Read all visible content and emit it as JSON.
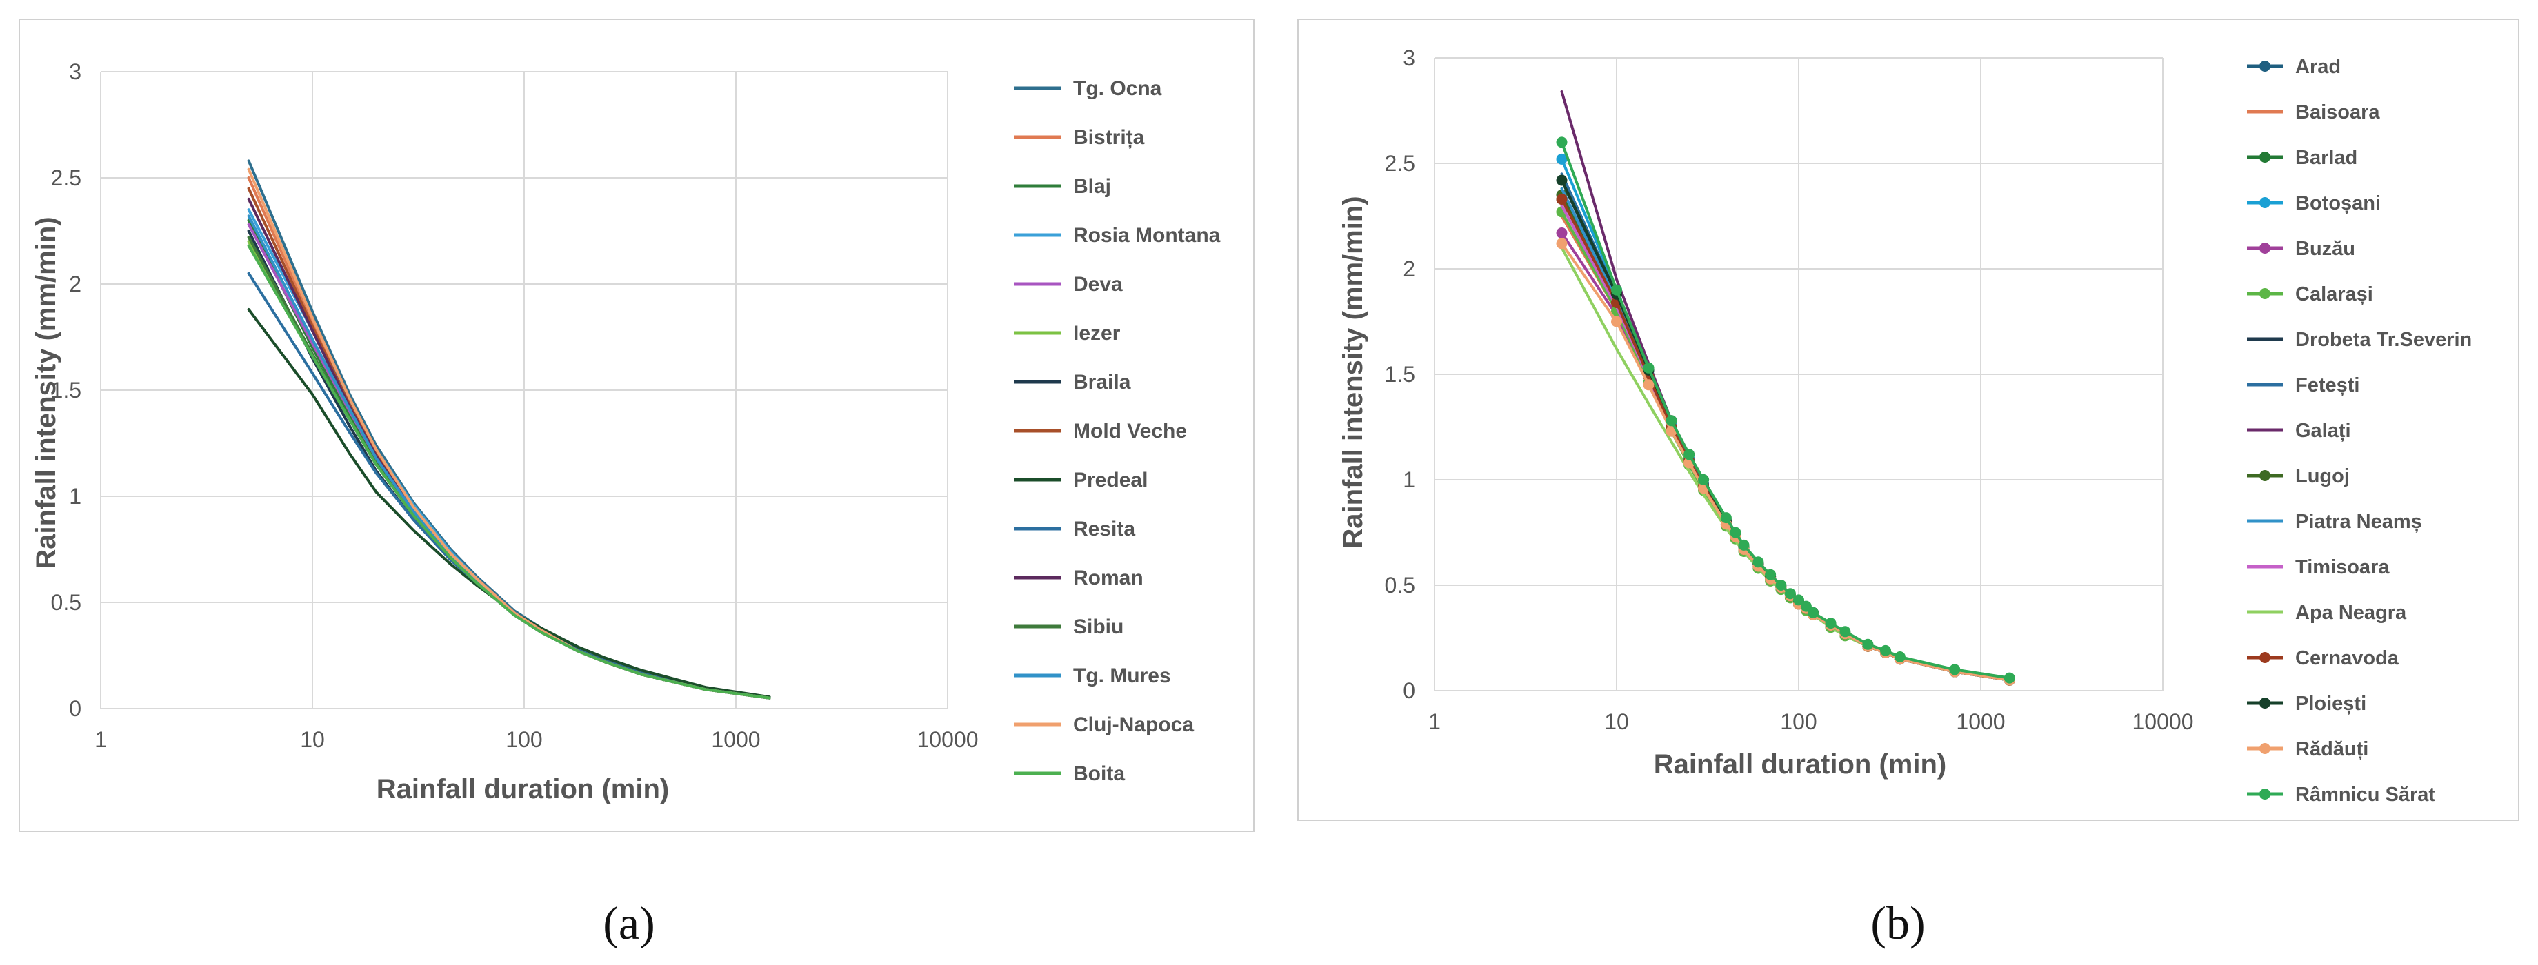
{
  "panel_labels": {
    "a": "(a)",
    "b": "(b)"
  },
  "chart_data": [
    {
      "id": "a",
      "type": "line",
      "xscale": "log",
      "xlabel": "Rainfall duration (min)",
      "ylabel": "Rainfall intensity (mm/min)",
      "xlim": [
        1,
        10000
      ],
      "ylim": [
        0,
        3
      ],
      "grid": true,
      "legend": "right",
      "x_ticks": [
        "1",
        "10",
        "100",
        "1000",
        "10000"
      ],
      "y_ticks": [
        "0",
        "0.5",
        "1",
        "1.5",
        "2",
        "2.5",
        "3"
      ],
      "x": [
        5,
        10,
        15,
        20,
        30,
        45,
        60,
        90,
        120,
        180,
        240,
        360,
        720,
        1440
      ],
      "series": [
        {
          "name": "Tg. Ocna",
          "color": "#2e6f8e",
          "values": [
            2.58,
            1.87,
            1.48,
            1.24,
            0.97,
            0.75,
            0.62,
            0.46,
            0.38,
            0.28,
            0.23,
            0.17,
            0.095,
            0.053
          ]
        },
        {
          "name": "Bistrița",
          "color": "#e07a52",
          "values": [
            2.5,
            1.82,
            1.45,
            1.21,
            0.95,
            0.73,
            0.61,
            0.45,
            0.37,
            0.27,
            0.22,
            0.16,
            0.09,
            0.05
          ]
        },
        {
          "name": "Blaj",
          "color": "#2f7d3a",
          "values": [
            2.3,
            1.7,
            1.38,
            1.16,
            0.92,
            0.72,
            0.6,
            0.45,
            0.37,
            0.27,
            0.22,
            0.16,
            0.09,
            0.05
          ]
        },
        {
          "name": "Rosia Montana",
          "color": "#3aa0d8",
          "values": [
            2.35,
            1.78,
            1.45,
            1.22,
            0.96,
            0.74,
            0.61,
            0.45,
            0.37,
            0.27,
            0.22,
            0.16,
            0.09,
            0.05
          ]
        },
        {
          "name": "Deva",
          "color": "#a855c0",
          "values": [
            2.28,
            1.72,
            1.4,
            1.18,
            0.93,
            0.72,
            0.6,
            0.45,
            0.37,
            0.27,
            0.22,
            0.16,
            0.09,
            0.05
          ]
        },
        {
          "name": "Iezer",
          "color": "#7cc243",
          "values": [
            2.2,
            1.66,
            1.36,
            1.15,
            0.91,
            0.71,
            0.59,
            0.44,
            0.36,
            0.27,
            0.22,
            0.16,
            0.09,
            0.05
          ]
        },
        {
          "name": "Braila",
          "color": "#1f3a4d",
          "values": [
            2.25,
            1.65,
            1.33,
            1.12,
            0.89,
            0.7,
            0.59,
            0.44,
            0.36,
            0.27,
            0.22,
            0.16,
            0.09,
            0.05
          ]
        },
        {
          "name": "Mold Veche",
          "color": "#a8502a",
          "values": [
            2.45,
            1.8,
            1.43,
            1.2,
            0.94,
            0.73,
            0.6,
            0.45,
            0.37,
            0.27,
            0.22,
            0.16,
            0.09,
            0.05
          ]
        },
        {
          "name": "Predeal",
          "color": "#1b4d2a",
          "values": [
            1.88,
            1.48,
            1.2,
            1.02,
            0.84,
            0.68,
            0.58,
            0.45,
            0.38,
            0.29,
            0.24,
            0.18,
            0.1,
            0.055
          ]
        },
        {
          "name": "Resita",
          "color": "#2c6fa0",
          "values": [
            2.05,
            1.58,
            1.3,
            1.11,
            0.89,
            0.7,
            0.59,
            0.44,
            0.36,
            0.27,
            0.22,
            0.16,
            0.09,
            0.05
          ]
        },
        {
          "name": "Roman",
          "color": "#5c2a5e",
          "values": [
            2.4,
            1.78,
            1.42,
            1.19,
            0.93,
            0.72,
            0.6,
            0.45,
            0.37,
            0.27,
            0.22,
            0.16,
            0.09,
            0.05
          ]
        },
        {
          "name": "Sibiu",
          "color": "#3e7a3b",
          "values": [
            2.22,
            1.67,
            1.36,
            1.15,
            0.91,
            0.71,
            0.59,
            0.44,
            0.36,
            0.27,
            0.22,
            0.16,
            0.09,
            0.05
          ]
        },
        {
          "name": "Tg. Mures",
          "color": "#3192c8",
          "values": [
            2.32,
            1.74,
            1.41,
            1.18,
            0.93,
            0.72,
            0.6,
            0.45,
            0.37,
            0.27,
            0.22,
            0.16,
            0.09,
            0.05
          ]
        },
        {
          "name": "Cluj-Napoca",
          "color": "#f0a06e",
          "values": [
            2.54,
            1.84,
            1.46,
            1.22,
            0.95,
            0.73,
            0.61,
            0.45,
            0.37,
            0.27,
            0.22,
            0.16,
            0.09,
            0.05
          ]
        },
        {
          "name": "Boita",
          "color": "#4cb050",
          "values": [
            2.18,
            1.66,
            1.36,
            1.15,
            0.91,
            0.71,
            0.59,
            0.44,
            0.36,
            0.27,
            0.22,
            0.16,
            0.09,
            0.05
          ]
        }
      ]
    },
    {
      "id": "b",
      "type": "line",
      "xscale": "log",
      "xlabel": "Rainfall duration (min)",
      "ylabel": "Rainfall intensity (mm/min)",
      "xlim": [
        1,
        10000
      ],
      "ylim": [
        0,
        3
      ],
      "grid": true,
      "legend": "right",
      "x_ticks": [
        "1",
        "10",
        "100",
        "1000",
        "10000"
      ],
      "y_ticks": [
        "0",
        "0.5",
        "1",
        "1.5",
        "2",
        "2.5",
        "3"
      ],
      "x": [
        5,
        10,
        15,
        20,
        25,
        30,
        40,
        45,
        50,
        60,
        70,
        80,
        90,
        100,
        110,
        120,
        150,
        180,
        240,
        300,
        360,
        720,
        1440
      ],
      "series": [
        {
          "name": "Arad",
          "color": "#1f5f80",
          "markers": true,
          "values": [
            2.35,
            1.85,
            1.5,
            1.26,
            1.1,
            0.98,
            0.8,
            0.74,
            0.68,
            0.6,
            0.54,
            0.49,
            0.45,
            0.42,
            0.39,
            0.37,
            0.31,
            0.27,
            0.21,
            0.18,
            0.15,
            0.09,
            0.05
          ]
        },
        {
          "name": "Baisoara",
          "color": "#e07a52",
          "markers": false,
          "values": [
            2.25,
            1.8,
            1.47,
            1.24,
            1.08,
            0.96,
            0.79,
            0.73,
            0.67,
            0.59,
            0.53,
            0.49,
            0.45,
            0.41,
            0.39,
            0.36,
            0.31,
            0.27,
            0.21,
            0.18,
            0.15,
            0.09,
            0.05
          ]
        },
        {
          "name": "Barlad",
          "color": "#237a35",
          "markers": true,
          "values": [
            2.33,
            1.85,
            1.5,
            1.26,
            1.1,
            0.97,
            0.8,
            0.73,
            0.68,
            0.6,
            0.54,
            0.49,
            0.45,
            0.42,
            0.39,
            0.37,
            0.31,
            0.27,
            0.21,
            0.18,
            0.15,
            0.09,
            0.05
          ]
        },
        {
          "name": "Botoșani",
          "color": "#1aa0d4",
          "markers": true,
          "values": [
            2.52,
            1.9,
            1.52,
            1.27,
            1.1,
            0.97,
            0.8,
            0.73,
            0.68,
            0.6,
            0.54,
            0.49,
            0.45,
            0.42,
            0.39,
            0.37,
            0.31,
            0.27,
            0.21,
            0.18,
            0.15,
            0.09,
            0.05
          ]
        },
        {
          "name": "Buzău",
          "color": "#a0409a",
          "markers": true,
          "values": [
            2.17,
            1.78,
            1.46,
            1.24,
            1.08,
            0.96,
            0.79,
            0.73,
            0.67,
            0.59,
            0.53,
            0.49,
            0.45,
            0.41,
            0.39,
            0.36,
            0.31,
            0.27,
            0.21,
            0.18,
            0.15,
            0.09,
            0.05
          ]
        },
        {
          "name": "Calarași",
          "color": "#5cb646",
          "markers": true,
          "values": [
            2.27,
            1.8,
            1.46,
            1.23,
            1.07,
            0.95,
            0.78,
            0.72,
            0.66,
            0.58,
            0.52,
            0.48,
            0.44,
            0.41,
            0.38,
            0.36,
            0.3,
            0.26,
            0.21,
            0.18,
            0.15,
            0.09,
            0.05
          ]
        },
        {
          "name": "Drobeta Tr.Severin",
          "color": "#1f3a4d",
          "markers": false,
          "values": [
            2.42,
            1.86,
            1.5,
            1.26,
            1.1,
            0.97,
            0.8,
            0.73,
            0.68,
            0.6,
            0.54,
            0.49,
            0.45,
            0.42,
            0.39,
            0.37,
            0.31,
            0.27,
            0.21,
            0.18,
            0.15,
            0.09,
            0.05
          ]
        },
        {
          "name": "Fetești",
          "color": "#2c6fa0",
          "markers": false,
          "values": [
            2.45,
            1.88,
            1.51,
            1.27,
            1.1,
            0.98,
            0.8,
            0.74,
            0.68,
            0.6,
            0.54,
            0.49,
            0.45,
            0.42,
            0.39,
            0.37,
            0.31,
            0.27,
            0.21,
            0.18,
            0.15,
            0.09,
            0.05
          ]
        },
        {
          "name": "Galați",
          "color": "#6a2a6a",
          "markers": false,
          "values": [
            2.84,
            1.95,
            1.55,
            1.28,
            1.1,
            0.98,
            0.8,
            0.74,
            0.68,
            0.6,
            0.54,
            0.49,
            0.45,
            0.42,
            0.39,
            0.37,
            0.31,
            0.27,
            0.21,
            0.18,
            0.15,
            0.09,
            0.05
          ]
        },
        {
          "name": "Lugoj",
          "color": "#3e6a23",
          "markers": true,
          "values": [
            2.35,
            1.84,
            1.49,
            1.25,
            1.09,
            0.97,
            0.79,
            0.73,
            0.67,
            0.59,
            0.53,
            0.49,
            0.45,
            0.41,
            0.39,
            0.36,
            0.31,
            0.27,
            0.21,
            0.18,
            0.15,
            0.09,
            0.05
          ]
        },
        {
          "name": "Piatra Neamș",
          "color": "#3192c8",
          "markers": false,
          "values": [
            2.38,
            1.85,
            1.49,
            1.25,
            1.09,
            0.97,
            0.79,
            0.73,
            0.67,
            0.59,
            0.53,
            0.49,
            0.45,
            0.41,
            0.39,
            0.36,
            0.31,
            0.27,
            0.21,
            0.18,
            0.15,
            0.09,
            0.05
          ]
        },
        {
          "name": "Timisoara",
          "color": "#c560c8",
          "markers": false,
          "values": [
            2.3,
            1.82,
            1.48,
            1.25,
            1.09,
            0.97,
            0.79,
            0.73,
            0.67,
            0.59,
            0.53,
            0.49,
            0.45,
            0.41,
            0.39,
            0.36,
            0.31,
            0.27,
            0.21,
            0.18,
            0.15,
            0.09,
            0.05
          ]
        },
        {
          "name": "Apa Neagra",
          "color": "#8fd060",
          "markers": false,
          "values": [
            2.1,
            1.62,
            1.36,
            1.18,
            1.04,
            0.93,
            0.77,
            0.71,
            0.66,
            0.58,
            0.52,
            0.48,
            0.44,
            0.41,
            0.38,
            0.36,
            0.3,
            0.26,
            0.21,
            0.18,
            0.15,
            0.09,
            0.05
          ]
        },
        {
          "name": "Cernavoda",
          "color": "#9c3a1e",
          "markers": true,
          "values": [
            2.33,
            1.84,
            1.49,
            1.25,
            1.09,
            0.97,
            0.8,
            0.74,
            0.68,
            0.6,
            0.54,
            0.49,
            0.45,
            0.42,
            0.39,
            0.37,
            0.31,
            0.27,
            0.21,
            0.18,
            0.15,
            0.09,
            0.05
          ]
        },
        {
          "name": "Ploiești",
          "color": "#16402a",
          "markers": true,
          "values": [
            2.42,
            1.88,
            1.52,
            1.28,
            1.12,
            1.0,
            0.81,
            0.74,
            0.68,
            0.6,
            0.54,
            0.49,
            0.45,
            0.42,
            0.39,
            0.37,
            0.31,
            0.27,
            0.21,
            0.18,
            0.15,
            0.09,
            0.05
          ]
        },
        {
          "name": "Rădăuți",
          "color": "#f0a06e",
          "markers": true,
          "values": [
            2.12,
            1.75,
            1.45,
            1.23,
            1.08,
            0.96,
            0.79,
            0.73,
            0.67,
            0.59,
            0.53,
            0.49,
            0.45,
            0.41,
            0.39,
            0.36,
            0.31,
            0.27,
            0.21,
            0.18,
            0.15,
            0.09,
            0.05
          ]
        },
        {
          "name": "Râmnicu Sărat",
          "color": "#2faa55",
          "markers": true,
          "values": [
            2.6,
            1.9,
            1.53,
            1.28,
            1.12,
            1.0,
            0.82,
            0.75,
            0.69,
            0.61,
            0.55,
            0.5,
            0.46,
            0.43,
            0.4,
            0.37,
            0.32,
            0.28,
            0.22,
            0.19,
            0.16,
            0.1,
            0.06
          ]
        }
      ]
    }
  ]
}
